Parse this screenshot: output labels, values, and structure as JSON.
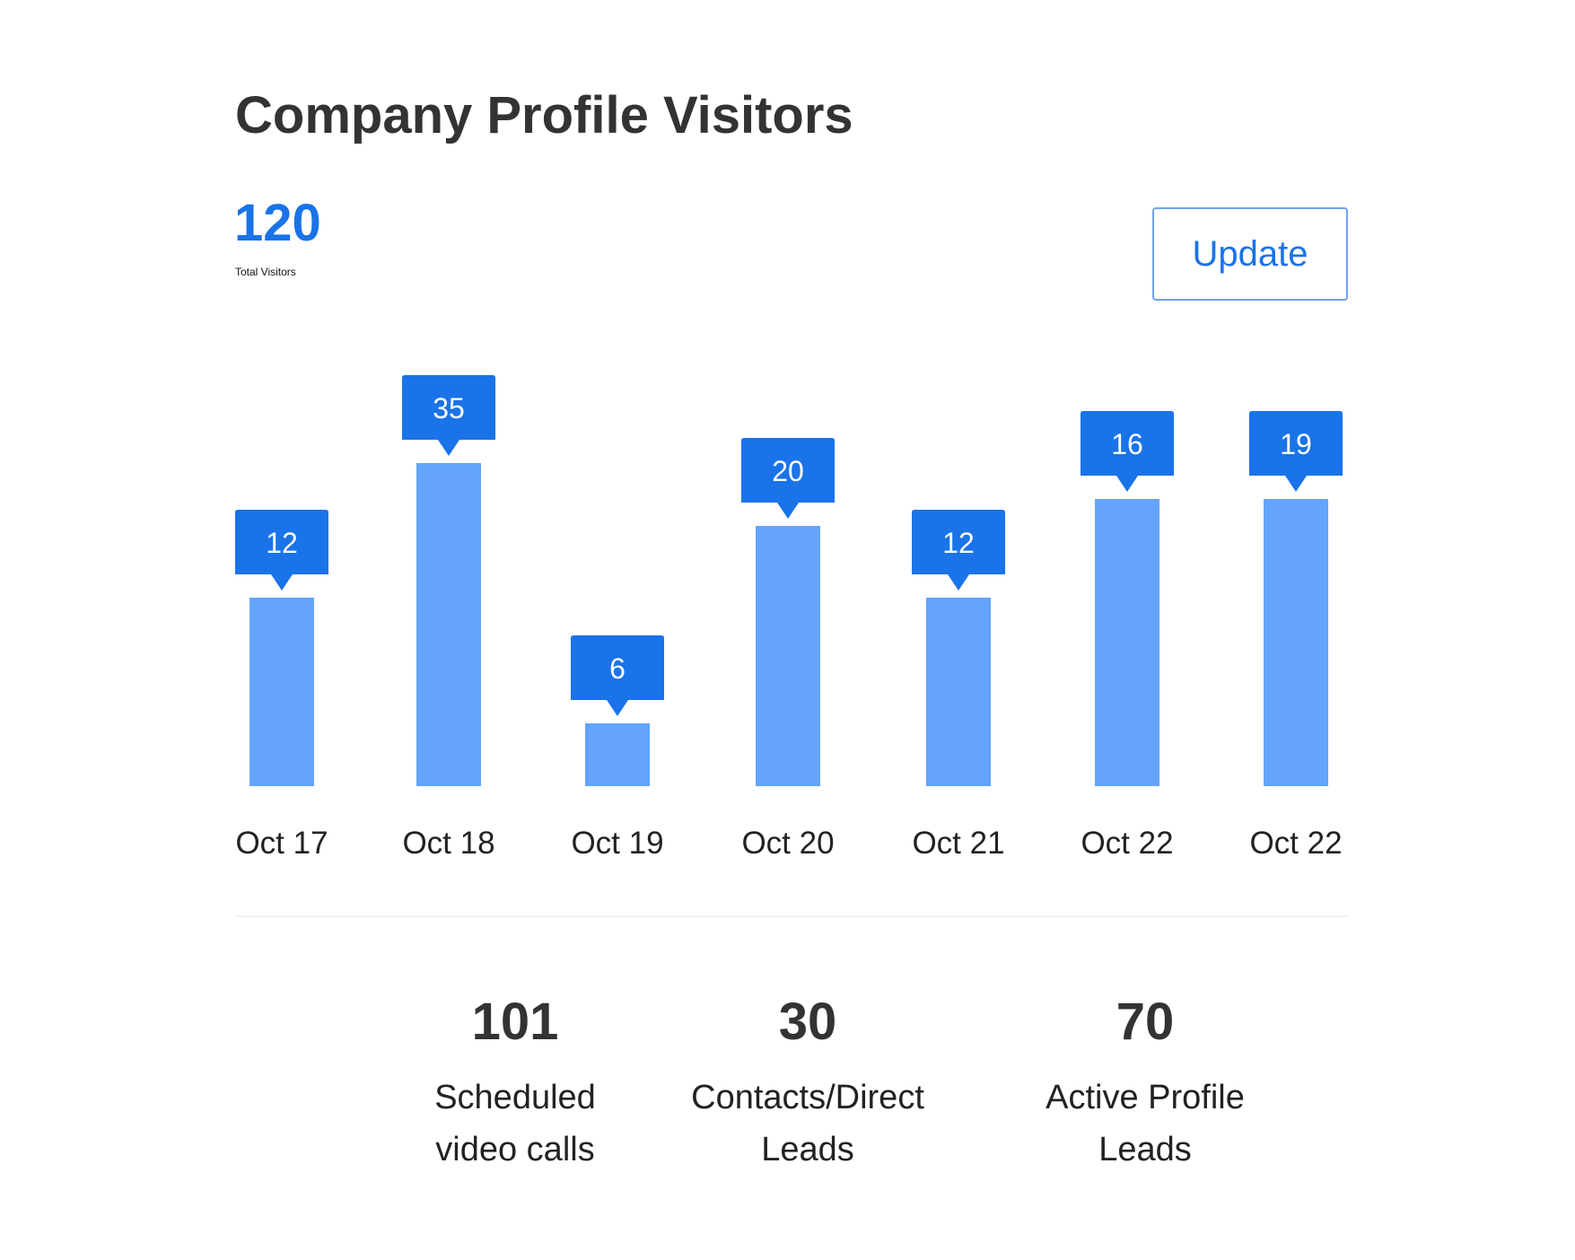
{
  "header": {
    "title": "Company Profile Visitors",
    "total_value": "120",
    "total_label": "Total Visitors",
    "update_label": "Update"
  },
  "chart_data": {
    "type": "bar",
    "title": "Company Profile Visitors",
    "xlabel": "",
    "ylabel": "",
    "categories": [
      "Oct 17",
      "Oct 18",
      "Oct 19",
      "Oct 20",
      "Oct 21",
      "Oct 22",
      "Oct 22"
    ],
    "values": [
      12,
      35,
      6,
      20,
      12,
      16,
      19
    ],
    "data_labels": [
      "12",
      "35",
      "6",
      "20",
      "12",
      "16",
      "19"
    ],
    "bar_heights": [
      10.5,
      18,
      3.5,
      14.5,
      10.5,
      16,
      16
    ],
    "ylim": [
      0,
      18
    ],
    "grid": false,
    "legend": "none",
    "colors": {
      "bar": "#64a4fc",
      "label_box": "#1a73e8",
      "label_text": "#ffffff"
    }
  },
  "stats": [
    {
      "value": "101",
      "label_line1": "Scheduled",
      "label_line2": "video calls"
    },
    {
      "value": "30",
      "label_line1": "Contacts/Direct",
      "label_line2": "Leads"
    },
    {
      "value": "70",
      "label_line1": "Active Profile",
      "label_line2": "Leads"
    }
  ]
}
